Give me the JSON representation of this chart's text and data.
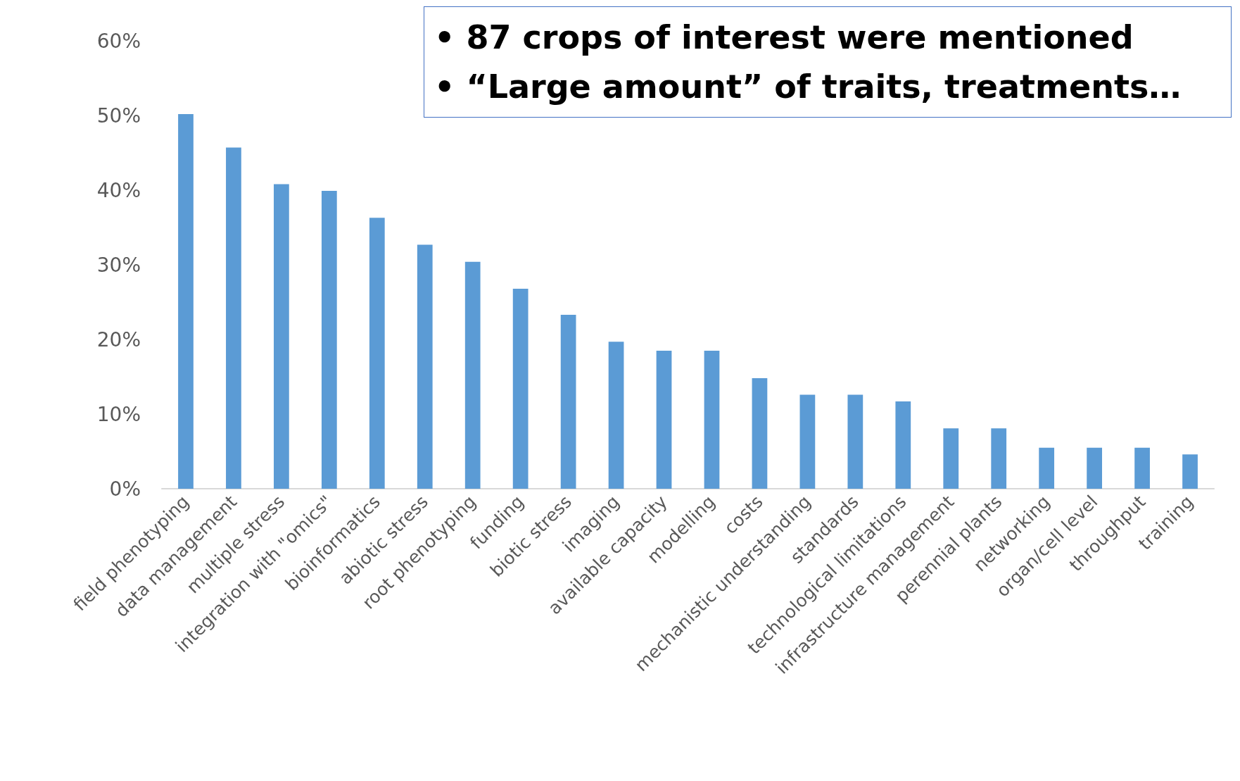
{
  "chart_data": {
    "type": "bar",
    "categories": [
      "field phenotyping",
      "data management",
      "multiple stress",
      "integration with \"omics\"",
      "bioinformatics",
      "abiotic stress",
      "root phenotyping",
      "funding",
      "biotic stress",
      "imaging",
      "available capacity",
      "modelling",
      "costs",
      "mechanistic understanding",
      "standards",
      "technological limitations",
      "infrastructure management",
      "perennial plants",
      "networking",
      "organ/cell level",
      "throughput",
      "training"
    ],
    "values": [
      50.2,
      45.7,
      40.8,
      39.9,
      36.3,
      32.7,
      30.4,
      26.8,
      23.3,
      19.7,
      18.5,
      18.5,
      14.8,
      12.6,
      12.6,
      11.7,
      8.1,
      8.1,
      5.5,
      5.5,
      5.5,
      4.6
    ],
    "color": "#5b9bd5",
    "ylim": [
      0,
      60
    ],
    "yticks": [
      {
        "value": 0,
        "label": "0%"
      },
      {
        "value": 10,
        "label": "10%"
      },
      {
        "value": 20,
        "label": "20%"
      },
      {
        "value": 30,
        "label": "30%"
      },
      {
        "value": 40,
        "label": "40%"
      },
      {
        "value": 50,
        "label": "50%"
      },
      {
        "value": 60,
        "label": "60%"
      }
    ],
    "grid": false,
    "annotations": [
      "• 87 crops of interest were mentioned",
      "• “Large amount” of traits, treatments…"
    ]
  }
}
